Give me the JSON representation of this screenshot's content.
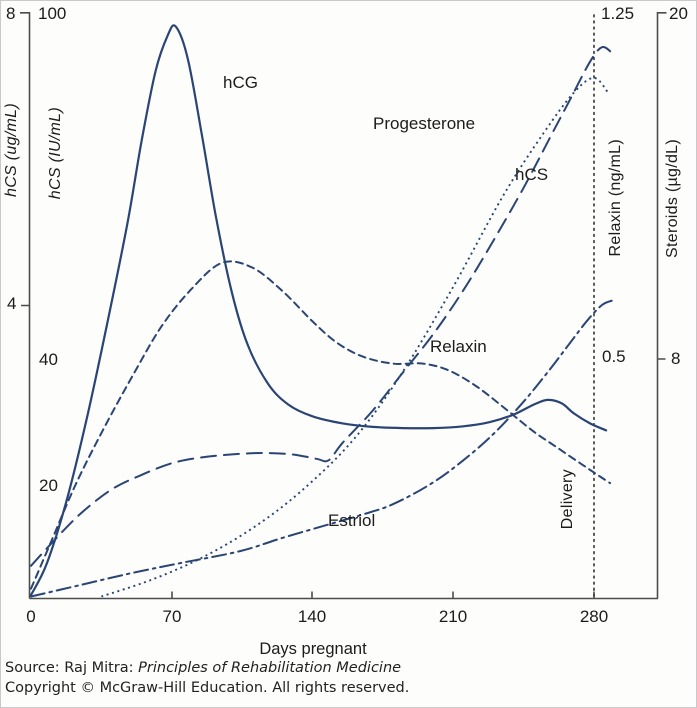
{
  "figure": {
    "bg_color": "#fdfdfb",
    "border_color": "#c9c9c9",
    "curve_color": "#2a4575",
    "axis_color": "#4d4d4d",
    "annotation_line_color": "#3c3c3c",
    "text_color": "#1c1c1c"
  },
  "caption": {
    "source_prefix": "Source: Raj Mitra: ",
    "source_title_italic": "Principles of Rehabilitation Medicine",
    "copyright": "Copyright © McGraw-Hill Education. All rights reserved."
  },
  "chart_data": {
    "type": "line",
    "grid": false,
    "legend": "inline curve labels",
    "x_axis": {
      "label": "Days pregnant",
      "ticks": [
        0,
        70,
        140,
        210,
        280
      ],
      "tick_labels": [
        "0",
        "70",
        "140",
        "210",
        "280"
      ],
      "range_days": [
        0,
        293
      ]
    },
    "y_axes": [
      {
        "id": "hcs_ug",
        "title": "hCS (ug/mL)",
        "side": "left-outer",
        "min": 0,
        "max": 8,
        "ticks": [
          8,
          4
        ],
        "tick_labels": [
          "8",
          "4"
        ],
        "italic": true
      },
      {
        "id": "hcg_iu",
        "title": "hCS (IU/mL)",
        "side": "left-inner",
        "min": 0,
        "max": 100,
        "ticks": [
          100,
          40,
          20
        ],
        "tick_labels": [
          "100",
          "40",
          "20"
        ],
        "italic": true
      },
      {
        "id": "relaxin_ng",
        "title": "Relaxin (ng/mL)",
        "side": "right-inner",
        "min": 0,
        "max": 1.25,
        "ticks": [
          1.25,
          0.5
        ],
        "tick_labels": [
          "1.25",
          "0.5"
        ],
        "italic": false
      },
      {
        "id": "steroids_ug",
        "title": "Steroids (µg/dL)",
        "side": "right-outer",
        "min": 0,
        "max": 20,
        "ticks": [
          20,
          8
        ],
        "tick_labels": [
          "20",
          "8"
        ],
        "italic": false
      }
    ],
    "series": [
      {
        "name": "hCG",
        "axis": "hcg_iu",
        "line_style": "solid",
        "unit": "IU/mL",
        "points": [
          [
            0,
            0.5
          ],
          [
            8,
            6
          ],
          [
            18,
            17
          ],
          [
            28,
            31
          ],
          [
            38,
            47
          ],
          [
            48,
            64
          ],
          [
            55,
            78
          ],
          [
            62,
            90
          ],
          [
            68,
            96
          ],
          [
            72,
            97.5
          ],
          [
            78,
            92
          ],
          [
            85,
            79
          ],
          [
            92,
            65
          ],
          [
            100,
            52
          ],
          [
            108,
            43
          ],
          [
            118,
            36.5
          ],
          [
            128,
            33
          ],
          [
            140,
            31
          ],
          [
            155,
            29.8
          ],
          [
            170,
            29.2
          ],
          [
            185,
            29
          ],
          [
            200,
            29
          ],
          [
            215,
            29.3
          ],
          [
            228,
            30
          ],
          [
            240,
            31.3
          ],
          [
            250,
            33
          ],
          [
            257,
            33.8
          ],
          [
            264,
            33.2
          ],
          [
            270,
            31.5
          ],
          [
            278,
            29.8
          ],
          [
            286,
            28.6
          ]
        ]
      },
      {
        "name": "Progesterone",
        "axis": "steroids_ug",
        "line_style": "long-dash",
        "unit": "µg/dL",
        "points": [
          [
            0,
            1.1
          ],
          [
            12,
            2.0
          ],
          [
            25,
            2.9
          ],
          [
            40,
            3.7
          ],
          [
            55,
            4.2
          ],
          [
            70,
            4.6
          ],
          [
            85,
            4.8
          ],
          [
            100,
            4.9
          ],
          [
            115,
            4.95
          ],
          [
            130,
            4.9
          ],
          [
            142,
            4.75
          ],
          [
            148,
            4.7
          ],
          [
            155,
            5.3
          ],
          [
            170,
            6.4
          ],
          [
            185,
            7.7
          ],
          [
            200,
            9.0
          ],
          [
            215,
            10.5
          ],
          [
            230,
            12.2
          ],
          [
            245,
            14.0
          ],
          [
            258,
            15.7
          ],
          [
            268,
            17.0
          ],
          [
            278,
            18.3
          ],
          [
            284,
            18.8
          ],
          [
            289,
            18.6
          ]
        ]
      },
      {
        "name": "hCS",
        "axis": "hcs_ug",
        "line_style": "dotted",
        "unit": "ug/mL",
        "points": [
          [
            35,
            0.02
          ],
          [
            60,
            0.25
          ],
          [
            85,
            0.55
          ],
          [
            110,
            0.95
          ],
          [
            134,
            1.45
          ],
          [
            160,
            2.15
          ],
          [
            184,
            3.05
          ],
          [
            210,
            4.25
          ],
          [
            235,
            5.5
          ],
          [
            255,
            6.35
          ],
          [
            270,
            6.9
          ],
          [
            280,
            7.1
          ],
          [
            287,
            6.9
          ]
        ]
      },
      {
        "name": "Relaxin",
        "axis": "relaxin_ng",
        "line_style": "short-dash",
        "unit": "ng/mL",
        "points": [
          [
            0,
            0.02
          ],
          [
            10,
            0.12
          ],
          [
            22,
            0.24
          ],
          [
            36,
            0.36
          ],
          [
            50,
            0.47
          ],
          [
            65,
            0.58
          ],
          [
            80,
            0.66
          ],
          [
            95,
            0.715
          ],
          [
            110,
            0.705
          ],
          [
            125,
            0.655
          ],
          [
            140,
            0.59
          ],
          [
            152,
            0.545
          ],
          [
            165,
            0.515
          ],
          [
            180,
            0.5
          ],
          [
            195,
            0.5
          ],
          [
            208,
            0.485
          ],
          [
            222,
            0.45
          ],
          [
            237,
            0.4
          ],
          [
            250,
            0.355
          ],
          [
            262,
            0.32
          ],
          [
            274,
            0.285
          ],
          [
            282,
            0.262
          ],
          [
            288,
            0.245
          ]
        ]
      },
      {
        "name": "Estriol",
        "axis": "steroids_ug",
        "line_style": "dash-dot",
        "unit": "µg/dL",
        "points": [
          [
            0,
            0.05
          ],
          [
            25,
            0.45
          ],
          [
            50,
            0.85
          ],
          [
            75,
            1.2
          ],
          [
            104,
            1.6
          ],
          [
            125,
            2.05
          ],
          [
            150,
            2.55
          ],
          [
            165,
            2.85
          ],
          [
            180,
            3.2
          ],
          [
            199,
            3.9
          ],
          [
            215,
            4.7
          ],
          [
            230,
            5.6
          ],
          [
            245,
            6.7
          ],
          [
            258,
            7.8
          ],
          [
            268,
            8.7
          ],
          [
            277,
            9.5
          ],
          [
            284,
            10.0
          ],
          [
            289,
            10.15
          ]
        ]
      }
    ],
    "annotations": [
      {
        "text": "Delivery",
        "type": "vertical-dotted-line",
        "day": 280
      }
    ]
  }
}
